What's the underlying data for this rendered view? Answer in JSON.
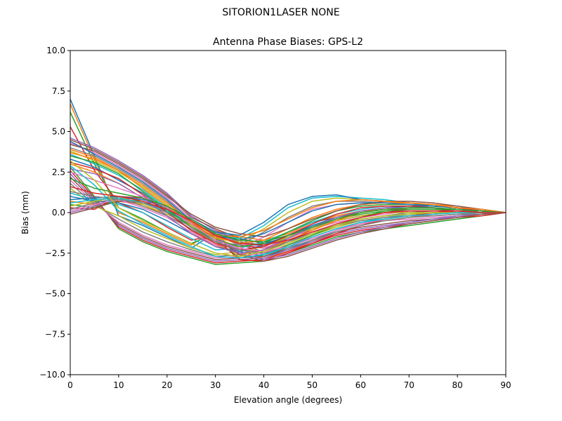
{
  "suptitle": "SITORION1LASER  NONE",
  "chart_data": {
    "type": "line",
    "title": "Antenna Phase Biases: GPS-L2",
    "xlabel": "Elevation angle (degrees)",
    "ylabel": "Bias (mm)",
    "xlim": [
      0,
      90
    ],
    "ylim": [
      -10,
      10
    ],
    "xticks": [
      0,
      10,
      20,
      30,
      40,
      50,
      60,
      70,
      80,
      90
    ],
    "yticks": [
      -10.0,
      -7.5,
      -5.0,
      -2.5,
      0.0,
      2.5,
      5.0,
      7.5,
      10.0
    ],
    "xtick_labels": [
      "0",
      "10",
      "20",
      "30",
      "40",
      "50",
      "60",
      "70",
      "80",
      "90"
    ],
    "ytick_labels": [
      "−10.0",
      "−7.5",
      "−5.0",
      "−2.5",
      "0.0",
      "2.5",
      "5.0",
      "7.5",
      "10.0"
    ],
    "grid": false,
    "legend": "none",
    "x": [
      0,
      5,
      10,
      15,
      20,
      25,
      30,
      35,
      40,
      45,
      50,
      55,
      60,
      65,
      70,
      75,
      80,
      85,
      90
    ],
    "colors": [
      "#1f77b4",
      "#ff7f0e",
      "#2ca02c",
      "#d62728",
      "#9467bd",
      "#8c564b",
      "#e377c2",
      "#7f7f7f",
      "#bcbd22",
      "#17becf"
    ],
    "series": [
      {
        "values": [
          7.0,
          3.5,
          -0.2,
          -0.8,
          -1.5,
          -2.2,
          -1.2,
          -1.6,
          -1.9,
          -1.5,
          -0.8,
          -0.3,
          0.0,
          0.2,
          0.3,
          0.3,
          0.2,
          0.1,
          0.0
        ]
      },
      {
        "values": [
          6.7,
          3.3,
          0.0,
          -0.6,
          -1.3,
          -2.0,
          -1.1,
          -1.5,
          -1.7,
          -1.3,
          -0.6,
          -0.2,
          0.1,
          0.2,
          0.3,
          0.3,
          0.2,
          0.1,
          0.0
        ]
      },
      {
        "values": [
          6.2,
          3.0,
          0.3,
          -0.4,
          -1.2,
          -1.9,
          -1.3,
          -1.8,
          -2.0,
          -1.6,
          -0.9,
          -0.4,
          -0.1,
          0.1,
          0.2,
          0.2,
          0.2,
          0.1,
          0.0
        ]
      },
      {
        "values": [
          5.3,
          2.6,
          0.6,
          0.0,
          -0.9,
          -1.7,
          -1.4,
          -2.0,
          -2.2,
          -1.8,
          -1.0,
          -0.5,
          -0.2,
          0.0,
          0.2,
          0.2,
          0.2,
          0.1,
          0.0
        ]
      },
      {
        "values": [
          4.6,
          4.0,
          3.2,
          2.3,
          1.2,
          -0.2,
          -1.1,
          -1.8,
          -2.1,
          -1.5,
          -0.9,
          -0.5,
          -0.2,
          0.0,
          0.1,
          0.1,
          0.1,
          0.1,
          0.0
        ]
      },
      {
        "values": [
          4.5,
          3.9,
          3.1,
          2.2,
          1.1,
          -0.3,
          -1.0,
          -1.6,
          -1.9,
          -1.2,
          -0.6,
          -0.3,
          0.0,
          0.2,
          0.2,
          0.2,
          0.1,
          0.1,
          0.0
        ]
      },
      {
        "values": [
          4.3,
          3.7,
          2.9,
          2.0,
          0.9,
          -0.4,
          -1.2,
          -1.9,
          -2.2,
          -1.6,
          -1.0,
          -0.6,
          -0.3,
          -0.1,
          0.1,
          0.1,
          0.1,
          0.0,
          0.0
        ]
      },
      {
        "values": [
          4.0,
          3.5,
          2.7,
          1.8,
          0.7,
          -0.6,
          -1.3,
          -2.0,
          -2.4,
          -1.8,
          -1.2,
          -0.8,
          -0.4,
          -0.2,
          0.0,
          0.1,
          0.1,
          0.0,
          0.0
        ]
      },
      {
        "values": [
          3.8,
          3.2,
          2.5,
          1.6,
          0.5,
          -0.8,
          -1.5,
          -2.2,
          -2.5,
          -2.0,
          -1.4,
          -0.9,
          -0.5,
          -0.3,
          -0.1,
          0.0,
          0.0,
          0.0,
          0.0
        ]
      },
      {
        "values": [
          3.6,
          3.0,
          2.3,
          1.4,
          0.3,
          -0.9,
          -1.6,
          -2.3,
          -2.6,
          -2.2,
          -1.5,
          -1.0,
          -0.6,
          -0.3,
          -0.1,
          0.0,
          0.0,
          0.0,
          0.0
        ]
      },
      {
        "values": [
          3.3,
          2.8,
          2.0,
          1.2,
          0.1,
          -1.1,
          -1.8,
          -2.4,
          -2.7,
          -2.3,
          -1.7,
          -1.1,
          -0.7,
          -0.4,
          -0.2,
          -0.1,
          0.0,
          0.0,
          0.0
        ]
      },
      {
        "values": [
          3.0,
          2.5,
          1.8,
          0.9,
          -0.2,
          -1.3,
          -2.0,
          -2.6,
          -2.8,
          -2.4,
          -1.8,
          -1.2,
          -0.8,
          -0.5,
          -0.3,
          -0.1,
          0.0,
          0.0,
          0.0
        ]
      },
      {
        "values": [
          2.8,
          1.0,
          -1.0,
          -1.8,
          -2.4,
          -2.8,
          -3.2,
          -3.1,
          -3.0,
          -2.5,
          -2.0,
          -1.5,
          -1.2,
          -1.0,
          -0.8,
          -0.6,
          -0.4,
          -0.2,
          0.0
        ]
      },
      {
        "values": [
          2.6,
          0.9,
          -0.9,
          -1.7,
          -2.3,
          -2.7,
          -3.1,
          -3.0,
          -2.9,
          -2.4,
          -1.9,
          -1.4,
          -1.1,
          -0.9,
          -0.7,
          -0.5,
          -0.3,
          -0.2,
          0.0
        ]
      },
      {
        "values": [
          2.4,
          0.8,
          -0.8,
          -1.6,
          -2.2,
          -2.6,
          -3.0,
          -2.9,
          -2.8,
          -2.3,
          -1.8,
          -1.3,
          -1.0,
          -0.8,
          -0.6,
          -0.4,
          -0.3,
          -0.1,
          0.0
        ]
      },
      {
        "values": [
          2.2,
          0.7,
          -0.7,
          -1.5,
          -2.1,
          -2.5,
          -2.9,
          -2.8,
          -2.7,
          -2.2,
          -1.7,
          -1.2,
          -0.9,
          -0.7,
          -0.5,
          -0.4,
          -0.2,
          -0.1,
          0.0
        ]
      },
      {
        "values": [
          2.0,
          0.6,
          -0.6,
          -1.4,
          -2.0,
          -2.4,
          -2.8,
          -2.7,
          -2.5,
          -2.0,
          -1.5,
          -1.0,
          -0.7,
          -0.5,
          -0.4,
          -0.3,
          -0.2,
          -0.1,
          0.0
        ]
      },
      {
        "values": [
          1.8,
          0.5,
          -0.4,
          -1.2,
          -1.8,
          -2.3,
          -2.7,
          -2.6,
          -2.3,
          -1.8,
          -1.3,
          -0.8,
          -0.5,
          -0.3,
          -0.2,
          -0.2,
          -0.1,
          -0.1,
          0.0
        ]
      },
      {
        "values": [
          1.5,
          0.4,
          -0.2,
          -1.0,
          -1.6,
          -2.2,
          -2.6,
          -2.4,
          -2.1,
          -1.5,
          -1.0,
          -0.5,
          -0.2,
          0.0,
          0.0,
          0.0,
          0.0,
          0.0,
          0.0
        ]
      },
      {
        "values": [
          1.2,
          0.8,
          0.5,
          0.0,
          -0.8,
          -1.6,
          -2.3,
          -2.2,
          -1.8,
          -1.2,
          -0.6,
          -0.1,
          0.2,
          0.4,
          0.4,
          0.3,
          0.2,
          0.1,
          0.0
        ]
      },
      {
        "values": [
          1.0,
          0.7,
          0.6,
          0.2,
          -0.5,
          -1.3,
          -2.1,
          -2.4,
          -2.0,
          -1.4,
          -0.8,
          -0.3,
          0.1,
          0.3,
          0.4,
          0.3,
          0.2,
          0.1,
          0.0
        ]
      },
      {
        "values": [
          0.7,
          0.5,
          0.7,
          0.5,
          -0.2,
          -1.0,
          -1.9,
          -2.6,
          -2.3,
          -1.7,
          -1.1,
          -0.5,
          0.0,
          0.2,
          0.3,
          0.3,
          0.2,
          0.1,
          0.0
        ]
      },
      {
        "values": [
          0.5,
          0.3,
          0.8,
          0.7,
          0.1,
          -0.8,
          -1.7,
          -2.8,
          -2.6,
          -2.0,
          -1.4,
          -0.8,
          -0.3,
          0.1,
          0.2,
          0.2,
          0.2,
          0.1,
          0.0
        ]
      },
      {
        "values": [
          0.3,
          0.2,
          1.0,
          0.9,
          0.3,
          -0.6,
          -1.6,
          -2.9,
          -3.0,
          -2.5,
          -1.9,
          -1.3,
          -0.8,
          -0.4,
          -0.2,
          0.0,
          0.1,
          0.0,
          0.0
        ]
      },
      {
        "values": [
          0.0,
          0.4,
          0.9,
          0.8,
          0.4,
          -0.5,
          -1.4,
          -2.5,
          -2.9,
          -2.6,
          -2.1,
          -1.6,
          -1.2,
          -0.9,
          -0.6,
          -0.4,
          -0.2,
          -0.1,
          0.0
        ]
      },
      {
        "values": [
          -0.1,
          0.3,
          0.7,
          0.6,
          0.2,
          -0.7,
          -1.5,
          -2.6,
          -3.0,
          -2.7,
          -2.2,
          -1.7,
          -1.3,
          -1.0,
          -0.7,
          -0.5,
          -0.3,
          -0.1,
          0.0
        ]
      },
      {
        "values": [
          0.1,
          0.5,
          0.8,
          0.3,
          -0.3,
          -1.2,
          -2.0,
          -2.2,
          -1.5,
          -0.6,
          0.2,
          0.5,
          0.6,
          0.6,
          0.5,
          0.4,
          0.3,
          0.2,
          0.0
        ]
      },
      {
        "values": [
          0.2,
          0.6,
          0.9,
          0.4,
          -0.2,
          -1.0,
          -1.8,
          -2.0,
          -1.2,
          -0.3,
          0.4,
          0.7,
          0.7,
          0.6,
          0.5,
          0.4,
          0.3,
          0.2,
          0.0
        ]
      },
      {
        "values": [
          0.4,
          0.7,
          1.0,
          0.5,
          -0.1,
          -0.8,
          -1.6,
          -1.8,
          -1.0,
          0.0,
          0.7,
          0.9,
          0.8,
          0.7,
          0.6,
          0.5,
          0.3,
          0.2,
          0.0
        ]
      },
      {
        "values": [
          0.6,
          0.8,
          0.9,
          0.6,
          0.1,
          -0.6,
          -1.4,
          -1.6,
          -0.8,
          0.3,
          0.9,
          1.0,
          0.9,
          0.8,
          0.6,
          0.5,
          0.3,
          0.2,
          0.0
        ]
      },
      {
        "values": [
          0.8,
          0.9,
          1.0,
          0.8,
          0.3,
          -0.4,
          -1.2,
          -1.4,
          -0.6,
          0.5,
          1.0,
          1.1,
          0.8,
          0.7,
          0.6,
          0.4,
          0.3,
          0.1,
          0.0
        ]
      },
      {
        "values": [
          3.9,
          3.4,
          2.6,
          1.5,
          0.4,
          -0.7,
          -1.5,
          -1.9,
          -1.7,
          -1.0,
          -0.3,
          0.2,
          0.5,
          0.6,
          0.6,
          0.5,
          0.4,
          0.2,
          0.0
        ]
      },
      {
        "values": [
          3.5,
          3.1,
          2.4,
          1.3,
          0.2,
          -0.9,
          -1.7,
          -2.1,
          -1.9,
          -1.2,
          -0.5,
          0.1,
          0.4,
          0.5,
          0.5,
          0.4,
          0.3,
          0.2,
          0.0
        ]
      },
      {
        "values": [
          3.1,
          2.7,
          2.1,
          1.1,
          0.0,
          -1.1,
          -1.9,
          -2.3,
          -2.1,
          -1.4,
          -0.7,
          -0.1,
          0.3,
          0.4,
          0.4,
          0.4,
          0.3,
          0.1,
          0.0
        ]
      },
      {
        "values": [
          2.7,
          2.4,
          1.8,
          0.9,
          -0.2,
          -1.3,
          -2.1,
          -2.5,
          -2.3,
          -1.6,
          -0.9,
          -0.3,
          0.1,
          0.3,
          0.3,
          0.3,
          0.2,
          0.1,
          0.0
        ]
      },
      {
        "values": [
          4.2,
          3.8,
          3.0,
          2.1,
          1.0,
          -0.1,
          -0.9,
          -1.3,
          -1.5,
          -1.0,
          -0.4,
          0.1,
          0.5,
          0.7,
          0.7,
          0.6,
          0.4,
          0.2,
          0.0
        ]
      },
      {
        "values": [
          2.5,
          2.0,
          1.5,
          1.0,
          0.3,
          -0.7,
          -1.7,
          -2.2,
          -2.4,
          -2.1,
          -1.6,
          -1.1,
          -0.7,
          -0.4,
          -0.2,
          -0.1,
          0.0,
          0.0,
          0.0
        ]
      },
      {
        "values": [
          1.3,
          1.0,
          0.8,
          0.6,
          0.0,
          -0.9,
          -1.8,
          -2.3,
          -2.5,
          -2.2,
          -1.7,
          -1.2,
          -0.8,
          -0.5,
          -0.3,
          -0.2,
          -0.1,
          0.0,
          0.0
        ]
      },
      {
        "values": [
          3.2,
          2.0,
          0.3,
          -0.5,
          -1.2,
          -1.9,
          -2.5,
          -2.7,
          -2.4,
          -1.9,
          -1.3,
          -0.8,
          -0.4,
          -0.2,
          -0.1,
          0.0,
          0.0,
          0.0,
          0.0
        ]
      },
      {
        "values": [
          2.9,
          1.7,
          0.1,
          -0.7,
          -1.4,
          -2.1,
          -2.7,
          -2.8,
          -2.6,
          -2.1,
          -1.5,
          -1.0,
          -0.6,
          -0.4,
          -0.2,
          -0.1,
          0.0,
          0.0,
          0.0
        ]
      },
      {
        "values": [
          4.4,
          3.6,
          2.8,
          1.9,
          0.8,
          -0.5,
          -1.4,
          -1.7,
          -1.3,
          -0.6,
          0.1,
          0.5,
          0.6,
          0.6,
          0.5,
          0.4,
          0.3,
          0.2,
          0.0
        ]
      },
      {
        "values": [
          3.7,
          3.3,
          2.6,
          1.7,
          0.6,
          -0.6,
          -1.4,
          -1.5,
          -1.1,
          -0.4,
          0.3,
          0.7,
          0.8,
          0.7,
          0.6,
          0.5,
          0.3,
          0.2,
          0.0
        ]
      },
      {
        "values": [
          2.1,
          1.5,
          1.2,
          0.9,
          0.4,
          -0.4,
          -1.3,
          -1.7,
          -1.8,
          -1.4,
          -0.9,
          -0.4,
          0.0,
          0.2,
          0.3,
          0.3,
          0.2,
          0.1,
          0.0
        ]
      },
      {
        "values": [
          1.6,
          1.2,
          1.0,
          0.7,
          0.2,
          -0.5,
          -1.4,
          -1.9,
          -2.0,
          -1.7,
          -1.2,
          -0.7,
          -0.3,
          0.0,
          0.1,
          0.1,
          0.1,
          0.0,
          0.0
        ]
      }
    ]
  }
}
